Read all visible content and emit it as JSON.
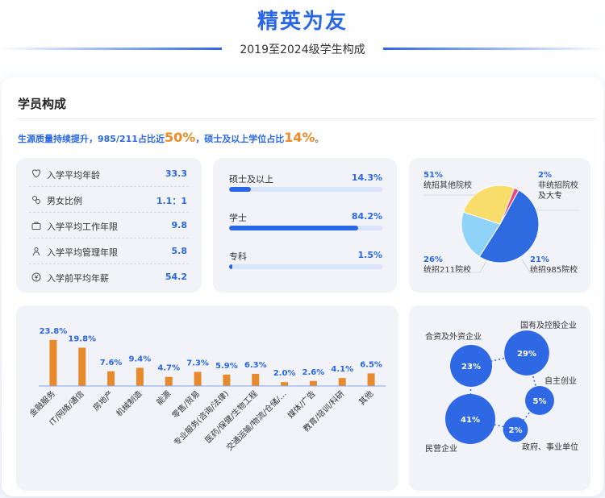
{
  "header": {
    "title": "精英为友",
    "subtitle": "2019至2024级学生构成"
  },
  "card": {
    "title": "学员构成",
    "summary": {
      "part1": "生源质量持续提升，985/211占比近",
      "hl1": "50%",
      "part2": "，硕士及以上学位占比",
      "hl2": "14%",
      "part3": "。"
    }
  },
  "stats": [
    {
      "icon": "age-icon",
      "label": "入学平均年龄",
      "value": "33.3"
    },
    {
      "icon": "gender-icon",
      "label": "男女比例",
      "value": "1.1：1"
    },
    {
      "icon": "briefcase-icon",
      "label": "入学平均工作年限",
      "value": "9.8"
    },
    {
      "icon": "manager-icon",
      "label": "入学平均管理年限",
      "value": "5.8"
    },
    {
      "icon": "yuan-icon",
      "label": "入学前平均年薪",
      "value": "54.2"
    }
  ],
  "colors": {
    "primary": "#2a67e6",
    "orange": "#e8892c",
    "pie": [
      "#2f6be0",
      "#8fd3f8",
      "#f8dd6b",
      "#e84a8a"
    ]
  },
  "chart_data": [
    {
      "type": "bar",
      "orientation": "horizontal-progress",
      "categories": [
        "硕士及以上",
        "学士",
        "专科"
      ],
      "values": [
        14.3,
        84.2,
        1.5
      ],
      "value_labels": [
        "14.3%",
        "84.2%",
        "1.5%"
      ],
      "unit": "%"
    },
    {
      "type": "pie",
      "slices": [
        {
          "label": "统招其他院校",
          "value": 51,
          "value_label": "51%"
        },
        {
          "label": "统招985院校",
          "value": 21,
          "value_label": "21%"
        },
        {
          "label": "统招211院校",
          "value": 26,
          "value_label": "26%"
        },
        {
          "label": "非统招院校及大专",
          "value": 2,
          "value_label": "2%"
        }
      ],
      "legend": "labels around pie"
    },
    {
      "type": "bar",
      "categories": [
        "金融服务",
        "IT/网络/通信",
        "房地产",
        "机械制造",
        "能源",
        "零售/贸易",
        "专业服务(咨询/法律)",
        "医药/保健/生物工程",
        "交通运输/物流/仓储/…",
        "媒体/广告",
        "教育/培训/科研",
        "其他"
      ],
      "values": [
        23.8,
        19.8,
        7.6,
        9.4,
        4.7,
        7.3,
        5.9,
        6.3,
        2.0,
        2.6,
        4.1,
        6.5
      ],
      "value_labels": [
        "23.8%",
        "19.8%",
        "7.6%",
        "9.4%",
        "4.7%",
        "7.3%",
        "5.9%",
        "6.3%",
        "2.0%",
        "2.6%",
        "4.1%",
        "6.5%"
      ],
      "ylim": [
        0,
        25
      ],
      "grid": false
    },
    {
      "type": "bubble",
      "items": [
        {
          "label": "合资及外资企业",
          "value": 23,
          "value_label": "23%"
        },
        {
          "label": "国有及控股企业",
          "value": 29,
          "value_label": "29%"
        },
        {
          "label": "自主创业",
          "value": 5,
          "value_label": "5%"
        },
        {
          "label": "政府、事业单位",
          "value": 2,
          "value_label": "2%"
        },
        {
          "label": "民营企业",
          "value": 41,
          "value_label": "41%"
        }
      ]
    }
  ]
}
